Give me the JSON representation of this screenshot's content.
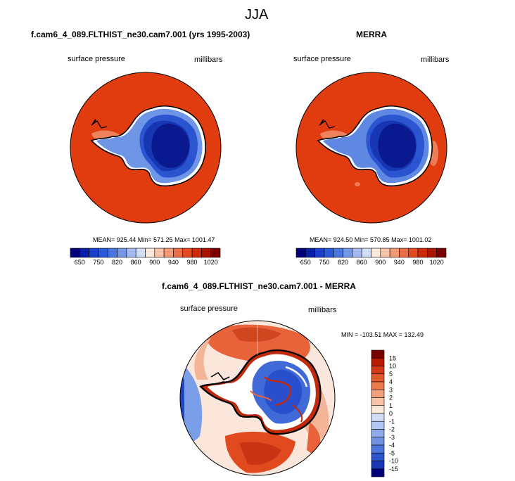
{
  "figure": {
    "season": "JJA",
    "variable": "surface pressure",
    "units": "millibars"
  },
  "panels": [
    {
      "title": "f.cam6_4_089.FLTHIST_ne30.cam7.001 (yrs 1995-2003)",
      "label_left": "surface pressure",
      "label_right": "millibars",
      "stats": "MEAN= 925.44   Min= 571.25   Max= 1001.47"
    },
    {
      "title": "MERRA",
      "label_left": "surface pressure",
      "label_right": "millibars",
      "stats": "MEAN= 924.50   Min= 570.85   Max= 1001.02"
    }
  ],
  "colorbar_abs": {
    "colors": [
      "#00007a",
      "#0a1fa8",
      "#1a3fcc",
      "#2a5ad8",
      "#4a77e0",
      "#7497e8",
      "#a3bbf0",
      "#d2ddf8",
      "#fde8dc",
      "#f8c3a6",
      "#f29a76",
      "#ea6d45",
      "#e24a1f",
      "#cc2a08",
      "#a81500",
      "#7a0000"
    ],
    "tick_labels": [
      "650",
      "750",
      "820",
      "860",
      "900",
      "940",
      "980",
      "1020"
    ]
  },
  "diff_panel": {
    "title": "f.cam6_4_089.FLTHIST_ne30.cam7.001 - MERRA",
    "label_left": "surface pressure",
    "label_right": "millibars",
    "minmax": "MIN = -103.51   MAX = 132.49",
    "colorbar": {
      "colors": [
        "#7a0000",
        "#b71c00",
        "#d03a14",
        "#e05a2a",
        "#ec7b4c",
        "#f3a07c",
        "#f8c3a6",
        "#fde8dc",
        "#d2ddf8",
        "#b1c6f2",
        "#90abe9",
        "#6f91e0",
        "#4d74d8",
        "#2c55cc",
        "#1a37b5",
        "#00007a"
      ],
      "tick_labels": [
        "15",
        "10",
        "5",
        "4",
        "3",
        "2",
        "1",
        "0",
        "-1",
        "-2",
        "-3",
        "-4",
        "-5",
        "-10",
        "-15"
      ]
    }
  }
}
